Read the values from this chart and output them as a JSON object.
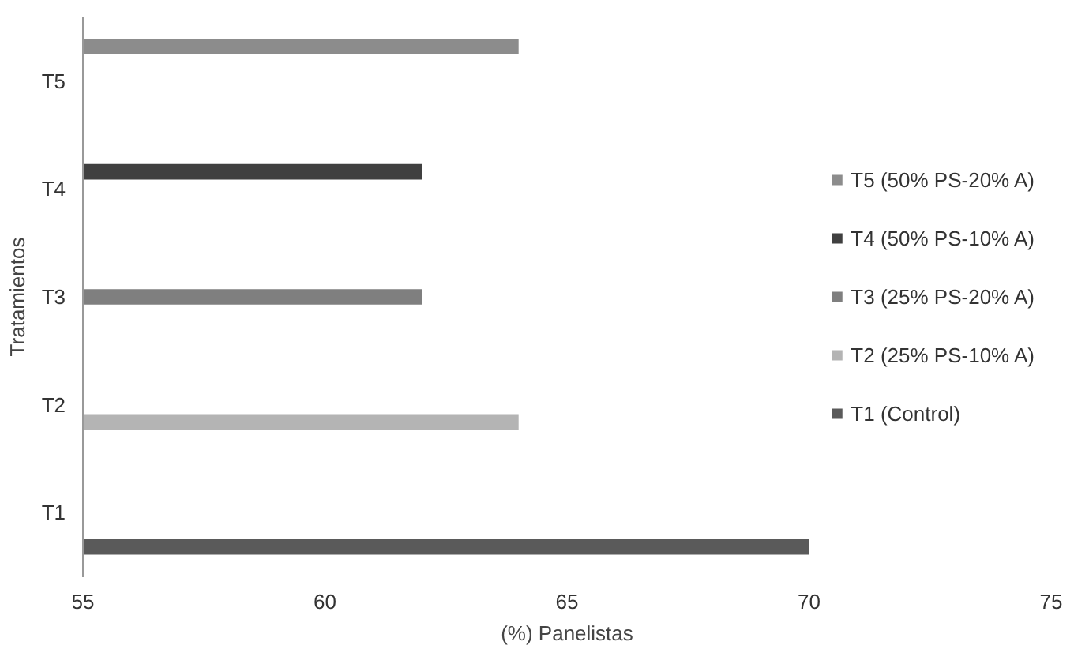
{
  "chart_data": {
    "type": "bar",
    "orientation": "horizontal",
    "xlabel": "(%) Panelistas",
    "ylabel": "Tratamientos",
    "categories": [
      "T5",
      "T4",
      "T3",
      "T2",
      "T1"
    ],
    "series": [
      {
        "name": "T1 (Control)",
        "color": "#5a5a5a",
        "values": [
          null,
          null,
          null,
          null,
          70
        ]
      },
      {
        "name": "T2 (25% PS-10% A)",
        "color": "#b4b4b4",
        "values": [
          null,
          null,
          null,
          64,
          null
        ]
      },
      {
        "name": "T3 (25% PS-20% A)",
        "color": "#7f7f7f",
        "values": [
          null,
          null,
          62,
          null,
          null
        ]
      },
      {
        "name": "T4 (50% PS-10% A)",
        "color": "#404040",
        "values": [
          null,
          62,
          null,
          null,
          null
        ]
      },
      {
        "name": "T5 (50% PS-20% A)",
        "color": "#8c8c8c",
        "values": [
          64,
          null,
          null,
          null,
          null
        ]
      }
    ],
    "xlim": [
      55,
      75
    ],
    "xticks": [
      55,
      60,
      65,
      70,
      75
    ],
    "grid": false,
    "legend": "right"
  }
}
